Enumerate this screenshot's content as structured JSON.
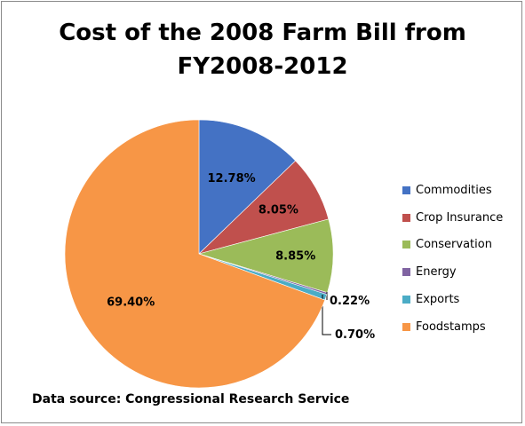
{
  "chart_data": {
    "type": "pie",
    "title_lines": [
      "Cost of the 2008 Farm Bill from",
      "FY2008-2012"
    ],
    "slices": [
      {
        "name": "Commodities",
        "value": 12.78,
        "label": "12.78%",
        "color": "#4472c4"
      },
      {
        "name": "Crop Insurance",
        "value": 8.05,
        "label": "8.05%",
        "color": "#c0504d"
      },
      {
        "name": "Conservation",
        "value": 8.85,
        "label": "8.85%",
        "color": "#9bbb59"
      },
      {
        "name": "Energy",
        "value": 0.22,
        "label": "0.22%",
        "color": "#8064a2"
      },
      {
        "name": "Exports",
        "value": 0.7,
        "label": "0.70%",
        "color": "#4bacc6"
      },
      {
        "name": "Foodstamps",
        "value": 69.4,
        "label": "69.40%",
        "color": "#f79646"
      }
    ],
    "legend_position": "right",
    "source": "Data source: Congressional Research Service"
  }
}
